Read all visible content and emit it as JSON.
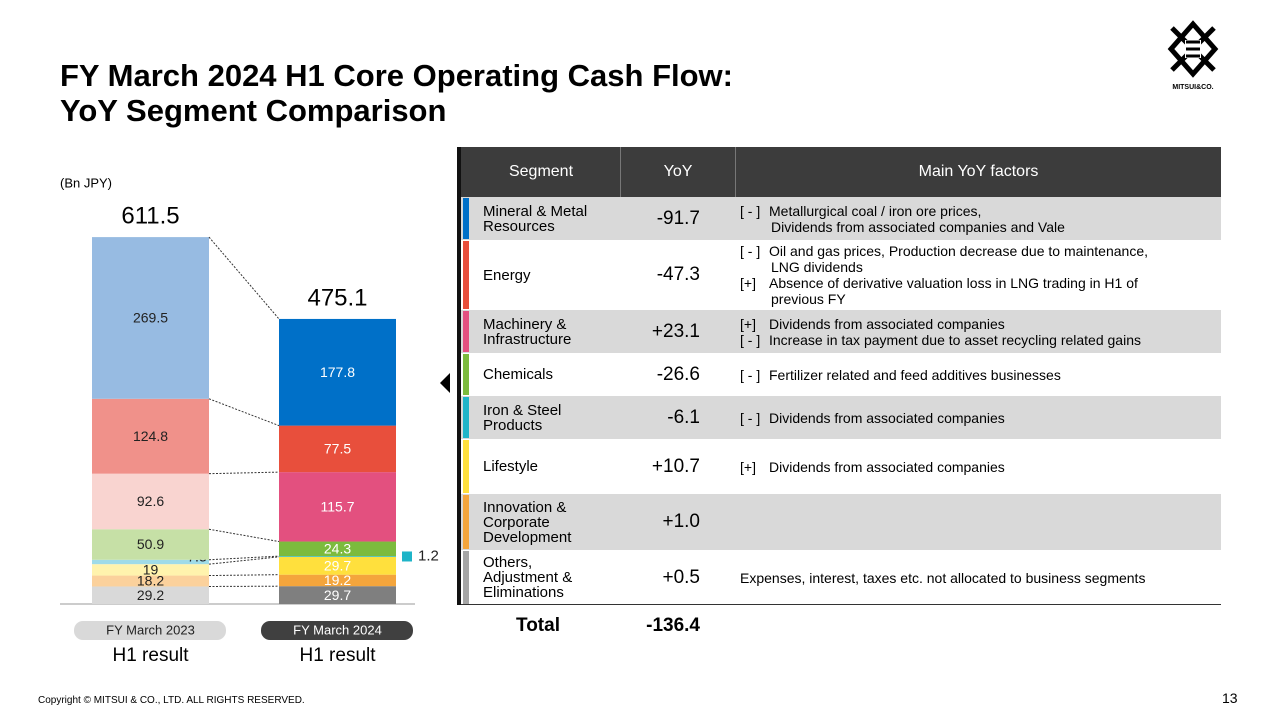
{
  "header": {
    "title_lines": [
      "FY March 2024 H1 Core Operating Cash Flow:",
      "YoY Segment Comparison"
    ],
    "logo_text": "MITSUI&CO."
  },
  "chart_data": {
    "type": "stacked_bar",
    "unit_label": "(Bn JPY)",
    "categories": [
      "FY March 2023",
      "FY March 2024"
    ],
    "category_sublabels": [
      "H1 result",
      "H1 result"
    ],
    "totals": [
      611.5,
      475.1
    ],
    "series": [
      {
        "colors": [
          "#d9d9d9",
          "#7f7f7f"
        ],
        "values": [
          29.2,
          29.7
        ]
      },
      {
        "colors": [
          "#fbd19c",
          "#f4a53c"
        ],
        "values": [
          18.2,
          19.2
        ]
      },
      {
        "colors": [
          "#fff3ad",
          "#ffe03d"
        ],
        "values": [
          19.0,
          29.7
        ]
      },
      {
        "colors": [
          "#9fdbe8",
          "#1eb4c8"
        ],
        "values": [
          7.3,
          1.2
        ]
      },
      {
        "colors": [
          "#c6e0a6",
          "#7cbb3d"
        ],
        "values": [
          50.9,
          24.3
        ]
      },
      {
        "colors": [
          "#f9d4d0",
          "#e3507f"
        ],
        "values": [
          92.6,
          115.7
        ]
      },
      {
        "colors": [
          "#f0918a",
          "#e84f3c"
        ],
        "values": [
          124.8,
          77.5
        ]
      },
      {
        "colors": [
          "#97bbe2",
          "#0070c8"
        ],
        "values": [
          269.5,
          177.8
        ]
      }
    ]
  },
  "table": {
    "columns": [
      "Segment",
      "YoY",
      "Main YoY factors"
    ],
    "rows": [
      {
        "segment": "Mineral & Metal\nResources",
        "color": "#0070c8",
        "yoy": "-91.7",
        "factors": [
          {
            "sign": "[ - ]",
            "lines": [
              "Metallurgical coal / iron ore prices,",
              "Dividends from associated companies and Vale"
            ]
          }
        ]
      },
      {
        "segment": "Energy",
        "color": "#e84f3c",
        "yoy": "-47.3",
        "factors": [
          {
            "sign": "[ - ]",
            "lines": [
              "Oil and gas prices, Production decrease due to maintenance,",
              "LNG dividends"
            ]
          },
          {
            "sign": "[+]",
            "lines": [
              "Absence of derivative valuation loss in LNG trading in H1 of",
              "previous FY"
            ]
          }
        ]
      },
      {
        "segment": "Machinery &\nInfrastructure",
        "color": "#e3507f",
        "yoy": "+23.1",
        "factors": [
          {
            "sign": "[+]",
            "lines": [
              "Dividends from associated companies"
            ]
          },
          {
            "sign": "[ - ]",
            "lines": [
              "Increase in tax payment due to asset recycling related gains"
            ]
          }
        ]
      },
      {
        "segment": "Chemicals",
        "color": "#7cbb3d",
        "yoy": "-26.6",
        "factors": [
          {
            "sign": "[ - ]",
            "lines": [
              "Fertilizer related and feed additives businesses"
            ]
          }
        ]
      },
      {
        "segment": "Iron & Steel\nProducts",
        "color": "#1eb4c8",
        "yoy": "-6.1",
        "factors": [
          {
            "sign": "[ - ]",
            "lines": [
              "Dividends from associated companies"
            ]
          }
        ]
      },
      {
        "segment": "Lifestyle",
        "color": "#ffe03d",
        "yoy": "+10.7",
        "factors": [
          {
            "sign": "[+]",
            "lines": [
              "Dividends from associated companies"
            ]
          }
        ]
      },
      {
        "segment": "Innovation &\nCorporate\nDevelopment",
        "color": "#f4a53c",
        "yoy": "+1.0",
        "factors": []
      },
      {
        "segment": "Others,\nAdjustment &\nEliminations",
        "color": "#a6a6a6",
        "yoy": "+0.5",
        "factors": [
          {
            "lines": [
              "Expenses, interest, taxes etc. not allocated to business segments"
            ]
          }
        ]
      }
    ],
    "total_label": "Total",
    "total_value": "-136.4"
  },
  "footer": {
    "copyright": "Copyright © MITSUI & CO., LTD. ALL RIGHTS RESERVED.",
    "page": "13"
  }
}
